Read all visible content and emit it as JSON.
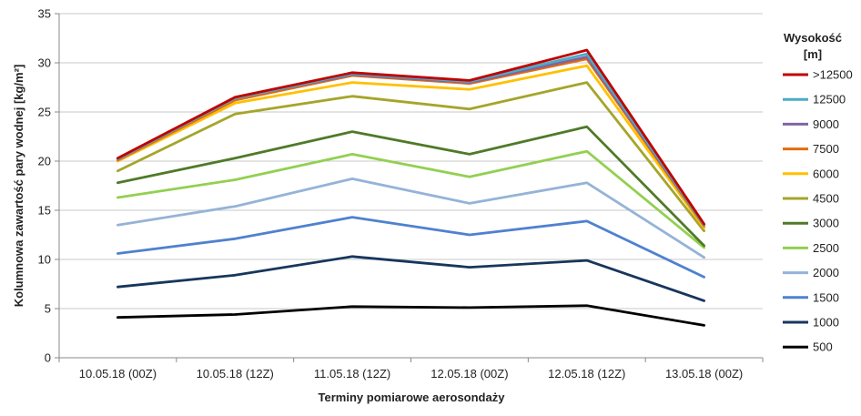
{
  "chart_data": {
    "type": "line",
    "xlabel": "Terminy pomiarowe aerosondaży",
    "ylabel": "Kolumnowa zawartość pary wodnej [kg/m²]",
    "ylim": [
      0,
      35
    ],
    "yticks": [
      0,
      5,
      10,
      15,
      20,
      25,
      30,
      35
    ],
    "categories": [
      "10.05.18 (00Z)",
      "10.05.18 (12Z)",
      "11.05.18 (12Z)",
      "12.05.18 (00Z)",
      "12.05.18 (12Z)",
      "13.05.18 (00Z)"
    ],
    "grid": "horizontal",
    "legend_position": "right",
    "legend_title": [
      "Wysokość",
      "[m]"
    ],
    "series": [
      {
        "name": ">12500",
        "color": "#C00000",
        "values": [
          20.3,
          26.5,
          29.0,
          28.2,
          31.3,
          13.6
        ]
      },
      {
        "name": "12500",
        "color": "#4BACC6",
        "values": [
          20.2,
          26.4,
          28.9,
          28.1,
          30.9,
          13.5
        ]
      },
      {
        "name": "9000",
        "color": "#8064A2",
        "values": [
          20.2,
          26.4,
          28.8,
          28.0,
          30.6,
          13.5
        ]
      },
      {
        "name": "7500",
        "color": "#E46C0A",
        "values": [
          20.1,
          26.2,
          28.7,
          27.9,
          30.4,
          13.4
        ]
      },
      {
        "name": "6000",
        "color": "#FFC000",
        "values": [
          20.0,
          25.9,
          28.0,
          27.3,
          29.7,
          13.2
        ]
      },
      {
        "name": "4500",
        "color": "#A5A52A",
        "values": [
          19.0,
          24.8,
          26.6,
          25.3,
          28.0,
          12.9
        ]
      },
      {
        "name": "3000",
        "color": "#4F7A28",
        "values": [
          17.8,
          20.3,
          23.0,
          20.7,
          23.5,
          11.4
        ]
      },
      {
        "name": "2500",
        "color": "#92D050",
        "values": [
          16.3,
          18.1,
          20.7,
          18.4,
          21.0,
          11.2
        ]
      },
      {
        "name": "2000",
        "color": "#95B3D7",
        "values": [
          13.5,
          15.4,
          18.2,
          15.7,
          17.8,
          10.2
        ]
      },
      {
        "name": "1500",
        "color": "#4F81D0",
        "values": [
          10.6,
          12.1,
          14.3,
          12.5,
          13.9,
          8.2
        ]
      },
      {
        "name": "1000",
        "color": "#17365D",
        "values": [
          7.2,
          8.4,
          10.3,
          9.2,
          9.9,
          5.8
        ]
      },
      {
        "name": "500",
        "color": "#000000",
        "values": [
          4.1,
          4.4,
          5.2,
          5.1,
          5.3,
          3.3
        ]
      }
    ]
  }
}
